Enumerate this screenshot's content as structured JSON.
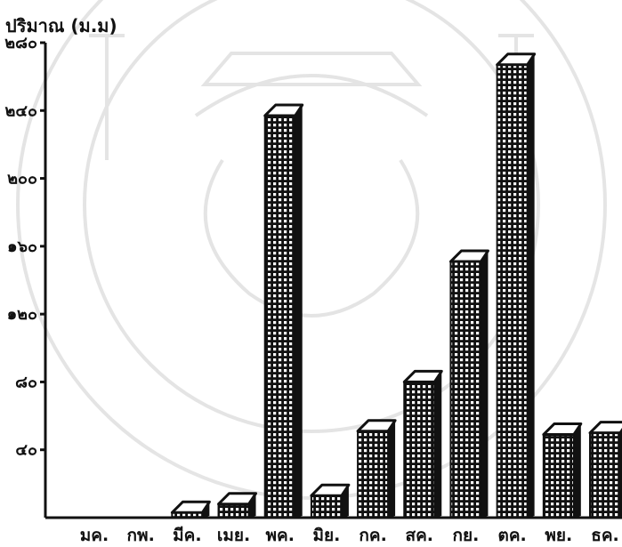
{
  "chart_data": {
    "type": "bar",
    "ylabel": "ปริมาณ (ม.ม)",
    "ylim": [
      0,
      280
    ],
    "yticks": [
      40,
      80,
      120,
      160,
      200,
      240,
      280
    ],
    "ytick_labels": [
      "๔๐",
      "๘๐",
      "๑๒๐",
      "๑๖๐",
      "๒๐๐",
      "๒๔๐",
      "๒๘๐"
    ],
    "categories": [
      "มค.",
      "กพ.",
      "มีค.",
      "เมย.",
      "พค.",
      "มิย.",
      "กค.",
      "สค.",
      "กย.",
      "ตค.",
      "พย.",
      "ธค."
    ],
    "values": [
      0,
      0,
      3,
      8,
      237,
      13,
      51,
      80,
      151,
      267,
      49,
      50
    ],
    "bar_style": "3d-hatched",
    "bar_color": "#111111",
    "grid": false,
    "legend": "none"
  },
  "watermark": {
    "visible": true,
    "color": "#cfcfcf",
    "icon": "university-seal-watermark"
  }
}
